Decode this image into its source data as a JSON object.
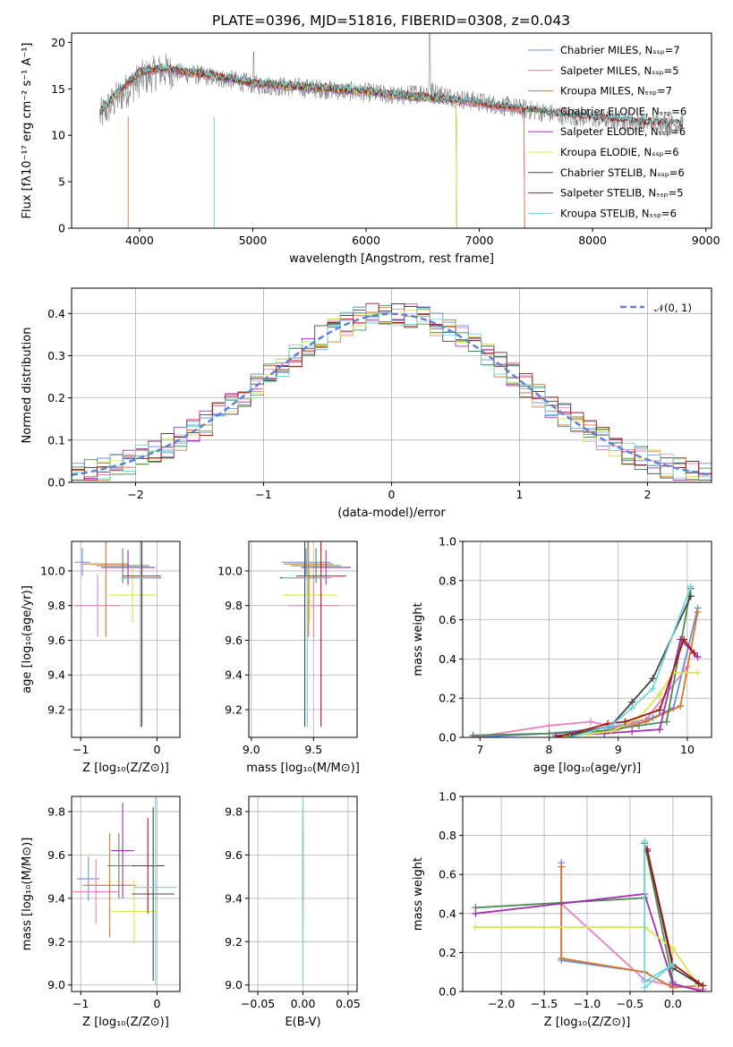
{
  "figure": {
    "title": "PLATE=0396, MJD=51816, FIBERID=0308, z=0.043"
  },
  "chart_data": [
    {
      "id": "spectrum",
      "type": "line",
      "xlabel": "wavelength [Angstrom, rest frame]",
      "ylabel": "Flux [fλ10⁻¹⁷ erg cm⁻² s⁻¹ A⁻¹]",
      "xlim": [
        3400,
        9050
      ],
      "ylim": [
        0,
        21
      ],
      "xticks": [
        4000,
        5000,
        6000,
        7000,
        8000,
        9000
      ],
      "yticks": [
        0,
        5,
        10,
        15,
        20
      ],
      "grid": false,
      "legend": "top-right",
      "data_series": {
        "name": "",
        "color": "#808080",
        "x": [
          3650,
          3800,
          4000,
          4200,
          4500,
          4800,
          5000,
          5300,
          5600,
          6000,
          6300,
          6563,
          6800,
          7100,
          7400,
          7700,
          8000,
          8300,
          8600,
          8800
        ],
        "y": [
          12,
          14,
          16,
          17,
          16.5,
          16,
          15.5,
          15.2,
          15,
          14.6,
          14.2,
          14.8,
          14,
          13.4,
          12.8,
          12.2,
          11.8,
          11.5,
          11.3,
          11.2
        ]
      },
      "model_x": [
        3650,
        3800,
        4000,
        4200,
        4500,
        4800,
        5000,
        5300,
        5600,
        6000,
        6300,
        6600,
        6800,
        7100,
        7400,
        7700,
        8000,
        8300,
        8600,
        8800
      ],
      "model_y": [
        12.5,
        14.5,
        16.8,
        17.2,
        16.7,
        16.1,
        15.6,
        15.3,
        15.1,
        14.7,
        14.3,
        14.0,
        13.8,
        13.3,
        12.8,
        12.3,
        11.9,
        11.6,
        11.3,
        11.2
      ],
      "series": [
        {
          "name": "Chabrier MILES, Nₛₛₚ=7",
          "color": "#6a8fd9",
          "cutoff": 7400
        },
        {
          "name": "Salpeter MILES, Nₛₛₚ=5",
          "color": "#e87fbf",
          "cutoff": 7400
        },
        {
          "name": "Kroupa MILES, Nₛₛₚ=7",
          "color": "#d6762c",
          "cutoff": 7400
        },
        {
          "name": "Chabrier ELODIE, Nₛₛₚ=6",
          "color": "#4e8a55",
          "cutoff": 6800
        },
        {
          "name": "Salpeter ELODIE, Nₛₛₚ=6",
          "color": "#a02fb2",
          "cutoff": 6800
        },
        {
          "name": "Kroupa ELODIE, Nₛₛₚ=6",
          "color": "#d6e64a",
          "cutoff": 6800
        },
        {
          "name": "Chabrier STELIB, Nₛₛₚ=6",
          "color": "#444444",
          "cutoff": 8800
        },
        {
          "name": "Salpeter STELIB, Nₛₛₚ=5",
          "color": "#a41818",
          "cutoff": 8800
        },
        {
          "name": "Kroupa STELIB, Nₛₛₚ=6",
          "color": "#6ed6d6",
          "cutoff": 8800
        }
      ]
    },
    {
      "id": "residuals",
      "type": "histogram",
      "xlabel": "(data-model)/error",
      "ylabel": "Normed distribution",
      "xlim": [
        -2.5,
        2.5
      ],
      "ylim": [
        0,
        0.46
      ],
      "xticks": [
        -2,
        -1,
        0,
        1,
        2
      ],
      "yticks": [
        0.0,
        0.1,
        0.2,
        0.3,
        0.4
      ],
      "grid": true,
      "legend": "top-right",
      "reference": {
        "name": "𝒩(0, 1)",
        "color": "#5b84d6",
        "mean": 0,
        "sigma": 1
      }
    },
    {
      "id": "age-vs-Z",
      "type": "errorbar",
      "xlabel": "Z [log₁₀(Z/Z⊙)]",
      "ylabel": "age  [log₁₀(age/yr)]",
      "xlim": [
        -1.12,
        0.3
      ],
      "ylim": [
        9.04,
        10.17
      ],
      "xticks": [
        -1,
        0
      ],
      "yticks": [
        9.2,
        9.4,
        9.6,
        9.8,
        10.0
      ],
      "grid": true,
      "points": [
        {
          "series": 0,
          "x": -0.98,
          "y": 10.05,
          "xerr": 0.1,
          "yerr": 0.08
        },
        {
          "series": 1,
          "x": -0.78,
          "y": 9.8,
          "xerr": 0.3,
          "yerr": 0.18
        },
        {
          "series": 2,
          "x": -0.67,
          "y": 10.04,
          "xerr": 0.3,
          "yerr": 0.42
        },
        {
          "series": 3,
          "x": -0.45,
          "y": 10.03,
          "xerr": 0.35,
          "yerr": 0.1
        },
        {
          "series": 4,
          "x": -0.38,
          "y": 10.02,
          "xerr": 0.35,
          "yerr": 0.1
        },
        {
          "series": 5,
          "x": -0.32,
          "y": 9.86,
          "xerr": 0.32,
          "yerr": 0.16
        },
        {
          "series": 6,
          "x": -0.2,
          "y": 9.96,
          "xerr": 0.25,
          "yerr": 0.86
        },
        {
          "series": 7,
          "x": -0.2,
          "y": 9.97,
          "xerr": 0.25,
          "yerr": 0.87
        },
        {
          "series": 8,
          "x": -0.22,
          "y": 9.96,
          "xerr": 0.25,
          "yerr": 0.86
        }
      ]
    },
    {
      "id": "age-vs-mass",
      "type": "errorbar",
      "xlabel": "mass [log₁₀(M/M⊙)]",
      "ylabel": "",
      "xlim": [
        8.98,
        9.85
      ],
      "ylim": [
        9.04,
        10.17
      ],
      "xticks": [
        9.0,
        9.5
      ],
      "yticks": [
        9.2,
        9.4,
        9.6,
        9.8,
        10.0
      ],
      "grid": true,
      "points": [
        {
          "series": 0,
          "x": 9.44,
          "y": 10.05,
          "xerr": 0.2,
          "yerr": 0.08
        },
        {
          "series": 1,
          "x": 9.5,
          "y": 9.8,
          "xerr": 0.2,
          "yerr": 0.18
        },
        {
          "series": 2,
          "x": 9.46,
          "y": 10.04,
          "xerr": 0.2,
          "yerr": 0.42
        },
        {
          "series": 3,
          "x": 9.52,
          "y": 10.03,
          "xerr": 0.2,
          "yerr": 0.1
        },
        {
          "series": 4,
          "x": 9.6,
          "y": 10.02,
          "xerr": 0.2,
          "yerr": 0.1
        },
        {
          "series": 5,
          "x": 9.47,
          "y": 9.86,
          "xerr": 0.22,
          "yerr": 0.16
        },
        {
          "series": 6,
          "x": 9.43,
          "y": 9.96,
          "xerr": 0.2,
          "yerr": 0.86
        },
        {
          "series": 7,
          "x": 9.56,
          "y": 9.97,
          "xerr": 0.2,
          "yerr": 0.87
        },
        {
          "series": 8,
          "x": 9.45,
          "y": 9.96,
          "xerr": 0.2,
          "yerr": 0.86
        }
      ]
    },
    {
      "id": "weight-vs-age",
      "type": "line",
      "xlabel": "age  [log₁₀(age/yr)]",
      "ylabel": "mass weight",
      "xlim": [
        6.75,
        10.35
      ],
      "ylim": [
        0,
        1.0
      ],
      "xticks": [
        7,
        8,
        9,
        10
      ],
      "yticks": [
        0.0,
        0.2,
        0.4,
        0.6,
        0.8,
        1.0
      ],
      "grid": true,
      "lines": [
        {
          "series": 0,
          "x": [
            6.9,
            8.0,
            8.9,
            9.5,
            9.8,
            10.15
          ],
          "y": [
            0.0,
            0.02,
            0.05,
            0.1,
            0.15,
            0.66
          ]
        },
        {
          "series": 1,
          "x": [
            6.9,
            8.0,
            8.6,
            9.0,
            9.4,
            10.0
          ],
          "y": [
            0.0,
            0.06,
            0.08,
            0.05,
            0.09,
            0.36
          ]
        },
        {
          "series": 2,
          "x": [
            8.1,
            8.9,
            9.4,
            9.9,
            10.15
          ],
          "y": [
            0.0,
            0.03,
            0.08,
            0.16,
            0.64
          ]
        },
        {
          "series": 3,
          "x": [
            6.9,
            8.0,
            8.7,
            9.3,
            9.7,
            10.05
          ],
          "y": [
            0.01,
            0.02,
            0.03,
            0.06,
            0.08,
            0.76
          ]
        },
        {
          "series": 4,
          "x": [
            8.1,
            8.8,
            9.2,
            9.6,
            9.9,
            10.15
          ],
          "y": [
            0.01,
            0.02,
            0.03,
            0.04,
            0.5,
            0.41
          ]
        },
        {
          "series": 5,
          "x": [
            8.1,
            8.9,
            9.3,
            9.6,
            9.8,
            10.15
          ],
          "y": [
            0.0,
            0.03,
            0.1,
            0.22,
            0.33,
            0.33
          ]
        },
        {
          "series": 6,
          "x": [
            8.3,
            8.9,
            9.2,
            9.5,
            10.05
          ],
          "y": [
            0.01,
            0.06,
            0.18,
            0.3,
            0.72
          ]
        },
        {
          "series": 7,
          "x": [
            8.1,
            8.85,
            9.1,
            9.6,
            9.95,
            10.1
          ],
          "y": [
            0.0,
            0.07,
            0.08,
            0.14,
            0.5,
            0.43
          ]
        },
        {
          "series": 8,
          "x": [
            8.3,
            8.9,
            9.2,
            9.5,
            10.05
          ],
          "y": [
            0.0,
            0.06,
            0.15,
            0.25,
            0.77
          ]
        }
      ]
    },
    {
      "id": "mass-vs-Z",
      "type": "errorbar",
      "xlabel": "Z [log₁₀(Z/Z⊙)]",
      "ylabel": "mass [log₁₀(M/M⊙)]",
      "xlim": [
        -1.12,
        0.3
      ],
      "ylim": [
        8.97,
        9.87
      ],
      "xticks": [
        -1,
        0
      ],
      "yticks": [
        9.0,
        9.2,
        9.4,
        9.6,
        9.8
      ],
      "grid": true,
      "points": [
        {
          "series": 0,
          "x": -0.9,
          "y": 9.49,
          "xerr": 0.15,
          "yerr": 0.1
        },
        {
          "series": 1,
          "x": -0.8,
          "y": 9.43,
          "xerr": 0.3,
          "yerr": 0.15
        },
        {
          "series": 2,
          "x": -0.62,
          "y": 9.46,
          "xerr": 0.35,
          "yerr": 0.24
        },
        {
          "series": 3,
          "x": -0.5,
          "y": 9.55,
          "xerr": 0.15,
          "yerr": 0.15
        },
        {
          "series": 4,
          "x": -0.45,
          "y": 9.62,
          "xerr": 0.15,
          "yerr": 0.22
        },
        {
          "series": 5,
          "x": -0.3,
          "y": 9.34,
          "xerr": 0.3,
          "yerr": 0.15
        },
        {
          "series": 6,
          "x": -0.05,
          "y": 9.42,
          "xerr": 0.28,
          "yerr": 0.4
        },
        {
          "series": 7,
          "x": -0.12,
          "y": 9.55,
          "xerr": 0.22,
          "yerr": 0.22
        },
        {
          "series": 8,
          "x": -0.02,
          "y": 9.45,
          "xerr": 0.28,
          "yerr": 0.45
        }
      ]
    },
    {
      "id": "mass-vs-EBV",
      "type": "errorbar",
      "xlabel": "E(B-V)",
      "ylabel": "",
      "xlim": [
        -0.06,
        0.06
      ],
      "ylim": [
        8.97,
        9.87
      ],
      "xticks": [
        -0.05,
        0.0,
        0.05
      ],
      "xticklabels": [
        "−0.05",
        "0.00",
        "0.05"
      ],
      "yticks": [
        9.0,
        9.2,
        9.4,
        9.6,
        9.8
      ],
      "grid": true,
      "points": [
        {
          "series": 0,
          "x": 0.0,
          "y": 9.49,
          "xerr": 0.0,
          "yerr": 0.1
        },
        {
          "series": 1,
          "x": 0.0,
          "y": 9.43,
          "xerr": 0.0,
          "yerr": 0.15
        },
        {
          "series": 2,
          "x": 0.0,
          "y": 9.46,
          "xerr": 0.0,
          "yerr": 0.24
        },
        {
          "series": 3,
          "x": 0.0,
          "y": 9.55,
          "xerr": 0.0,
          "yerr": 0.15
        },
        {
          "series": 4,
          "x": 0.0,
          "y": 9.62,
          "xerr": 0.0,
          "yerr": 0.22
        },
        {
          "series": 5,
          "x": 0.0,
          "y": 9.34,
          "xerr": 0.0,
          "yerr": 0.15
        },
        {
          "series": 6,
          "x": 0.0,
          "y": 9.42,
          "xerr": 0.0,
          "yerr": 0.4
        },
        {
          "series": 7,
          "x": 0.0,
          "y": 9.55,
          "xerr": 0.0,
          "yerr": 0.22
        },
        {
          "series": 8,
          "x": 0.0,
          "y": 9.45,
          "xerr": 0.0,
          "yerr": 0.45
        }
      ]
    },
    {
      "id": "weight-vs-Z",
      "type": "line",
      "xlabel": "Z [log₁₀(Z/Z⊙)]",
      "ylabel": "mass weight",
      "xlim": [
        -2.45,
        0.45
      ],
      "ylim": [
        0,
        1.0
      ],
      "xticks": [
        -2.0,
        -1.5,
        -1.0,
        -0.5,
        0.0
      ],
      "xticklabels": [
        "−2.0",
        "−1.5",
        "−1.0",
        "−0.5",
        "0.0"
      ],
      "yticks": [
        0.0,
        0.2,
        0.4,
        0.6,
        0.8,
        1.0
      ],
      "grid": true,
      "lines": [
        {
          "series": 0,
          "x": [
            -1.3,
            -1.3,
            -0.33,
            0.0
          ],
          "y": [
            0.66,
            0.16,
            0.1,
            0.02
          ]
        },
        {
          "series": 1,
          "x": [
            -1.3,
            -0.33,
            0.0,
            0.35
          ],
          "y": [
            0.45,
            0.06,
            0.03,
            0.01
          ]
        },
        {
          "series": 2,
          "x": [
            -1.3,
            -1.3,
            -0.33,
            0.0,
            0.3
          ],
          "y": [
            0.64,
            0.17,
            0.1,
            0.02,
            0.03
          ]
        },
        {
          "series": 3,
          "x": [
            -2.3,
            -0.33,
            -0.33,
            0.0
          ],
          "y": [
            0.43,
            0.48,
            0.76,
            0.05
          ]
        },
        {
          "series": 4,
          "x": [
            -2.3,
            -0.33,
            0.0,
            0.35
          ],
          "y": [
            0.4,
            0.5,
            0.04,
            0.0
          ]
        },
        {
          "series": 5,
          "x": [
            -2.3,
            -0.33,
            0.0,
            0.3
          ],
          "y": [
            0.33,
            0.33,
            0.22,
            0.03
          ]
        },
        {
          "series": 6,
          "x": [
            -0.3,
            0.0,
            0.3
          ],
          "y": [
            0.72,
            0.12,
            0.04
          ]
        },
        {
          "series": 7,
          "x": [
            -0.3,
            0.0,
            0.35
          ],
          "y": [
            0.73,
            0.14,
            0.03
          ]
        },
        {
          "series": 8,
          "x": [
            -0.33,
            -0.33,
            0.0,
            -0.33
          ],
          "y": [
            0.77,
            0.05,
            0.14,
            0.02
          ]
        }
      ]
    }
  ]
}
